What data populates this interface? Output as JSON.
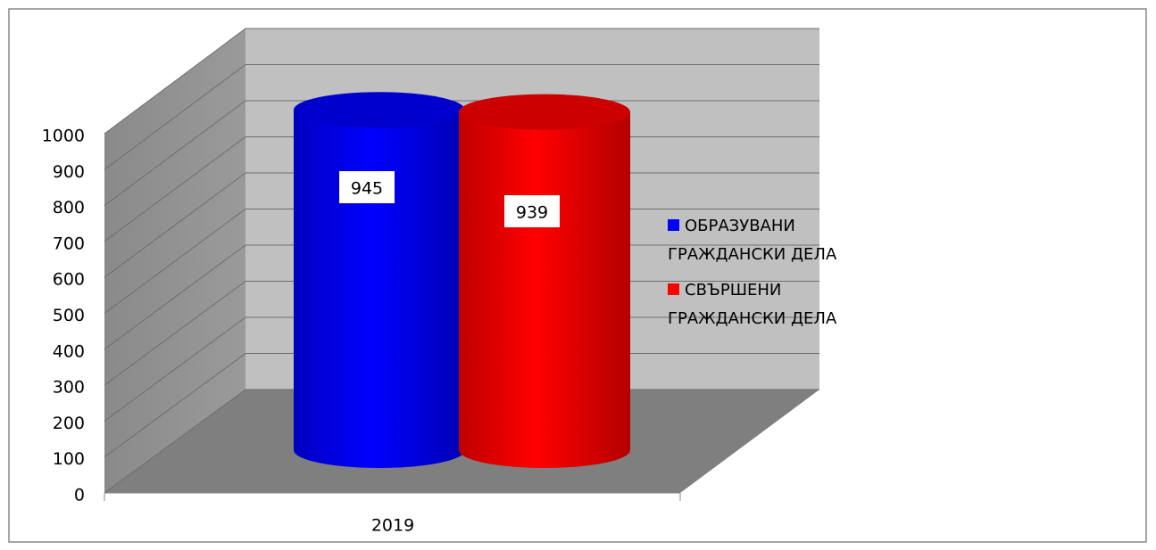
{
  "chart_data": {
    "type": "bar",
    "categories": [
      "2019"
    ],
    "series": [
      {
        "name": "ОБРАЗУВАНИ ГРАЖДАНСКИ ДЕЛА",
        "color": "#0000ff",
        "values": [
          945
        ]
      },
      {
        "name": "СВЪРШЕНИ ГРАЖДАНСКИ ДЕЛА",
        "color": "#ff0000",
        "values": [
          939
        ]
      }
    ],
    "ylim": [
      0,
      1000
    ],
    "yticks": [
      0,
      100,
      200,
      300,
      400,
      500,
      600,
      700,
      800,
      900,
      1000
    ],
    "grid": true
  }
}
